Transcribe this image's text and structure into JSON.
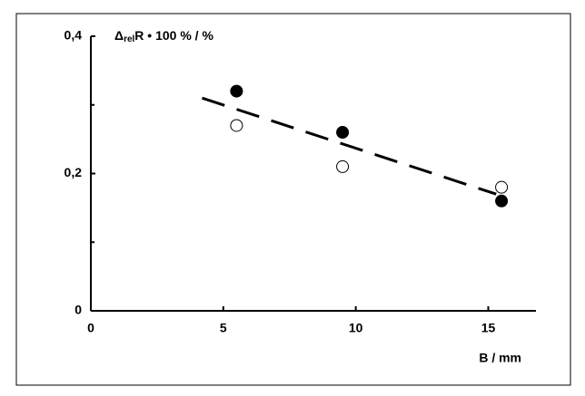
{
  "chart_data": {
    "type": "scatter",
    "y_label": {
      "main": "Δ",
      "sub": "rel",
      "rest": "R • 100 %  /  %"
    },
    "x_label": "B  /  mm",
    "xlim": [
      0,
      16.8
    ],
    "xticks": [
      0,
      5,
      10,
      15
    ],
    "ylim": [
      0,
      0.4
    ],
    "yticks": [
      {
        "value": 0,
        "label": "0"
      },
      {
        "value": 0.2,
        "label": "0,2"
      },
      {
        "value": 0.4,
        "label": "0,4"
      }
    ],
    "yticks_minor": [
      0.1,
      0.3
    ],
    "series": [
      {
        "kind": "points",
        "marker": "filled",
        "color": "#000000",
        "x": [
          5.5,
          9.5,
          15.5
        ],
        "values": [
          0.32,
          0.26,
          0.16
        ]
      },
      {
        "kind": "points",
        "marker": "open",
        "color": "#000000",
        "x": [
          5.5,
          9.5,
          15.5
        ],
        "values": [
          0.27,
          0.21,
          0.18
        ]
      },
      {
        "kind": "line",
        "dashed": true,
        "color": "#000000",
        "x": [
          4.2,
          15.3
        ],
        "values": [
          0.31,
          0.17
        ]
      }
    ]
  }
}
